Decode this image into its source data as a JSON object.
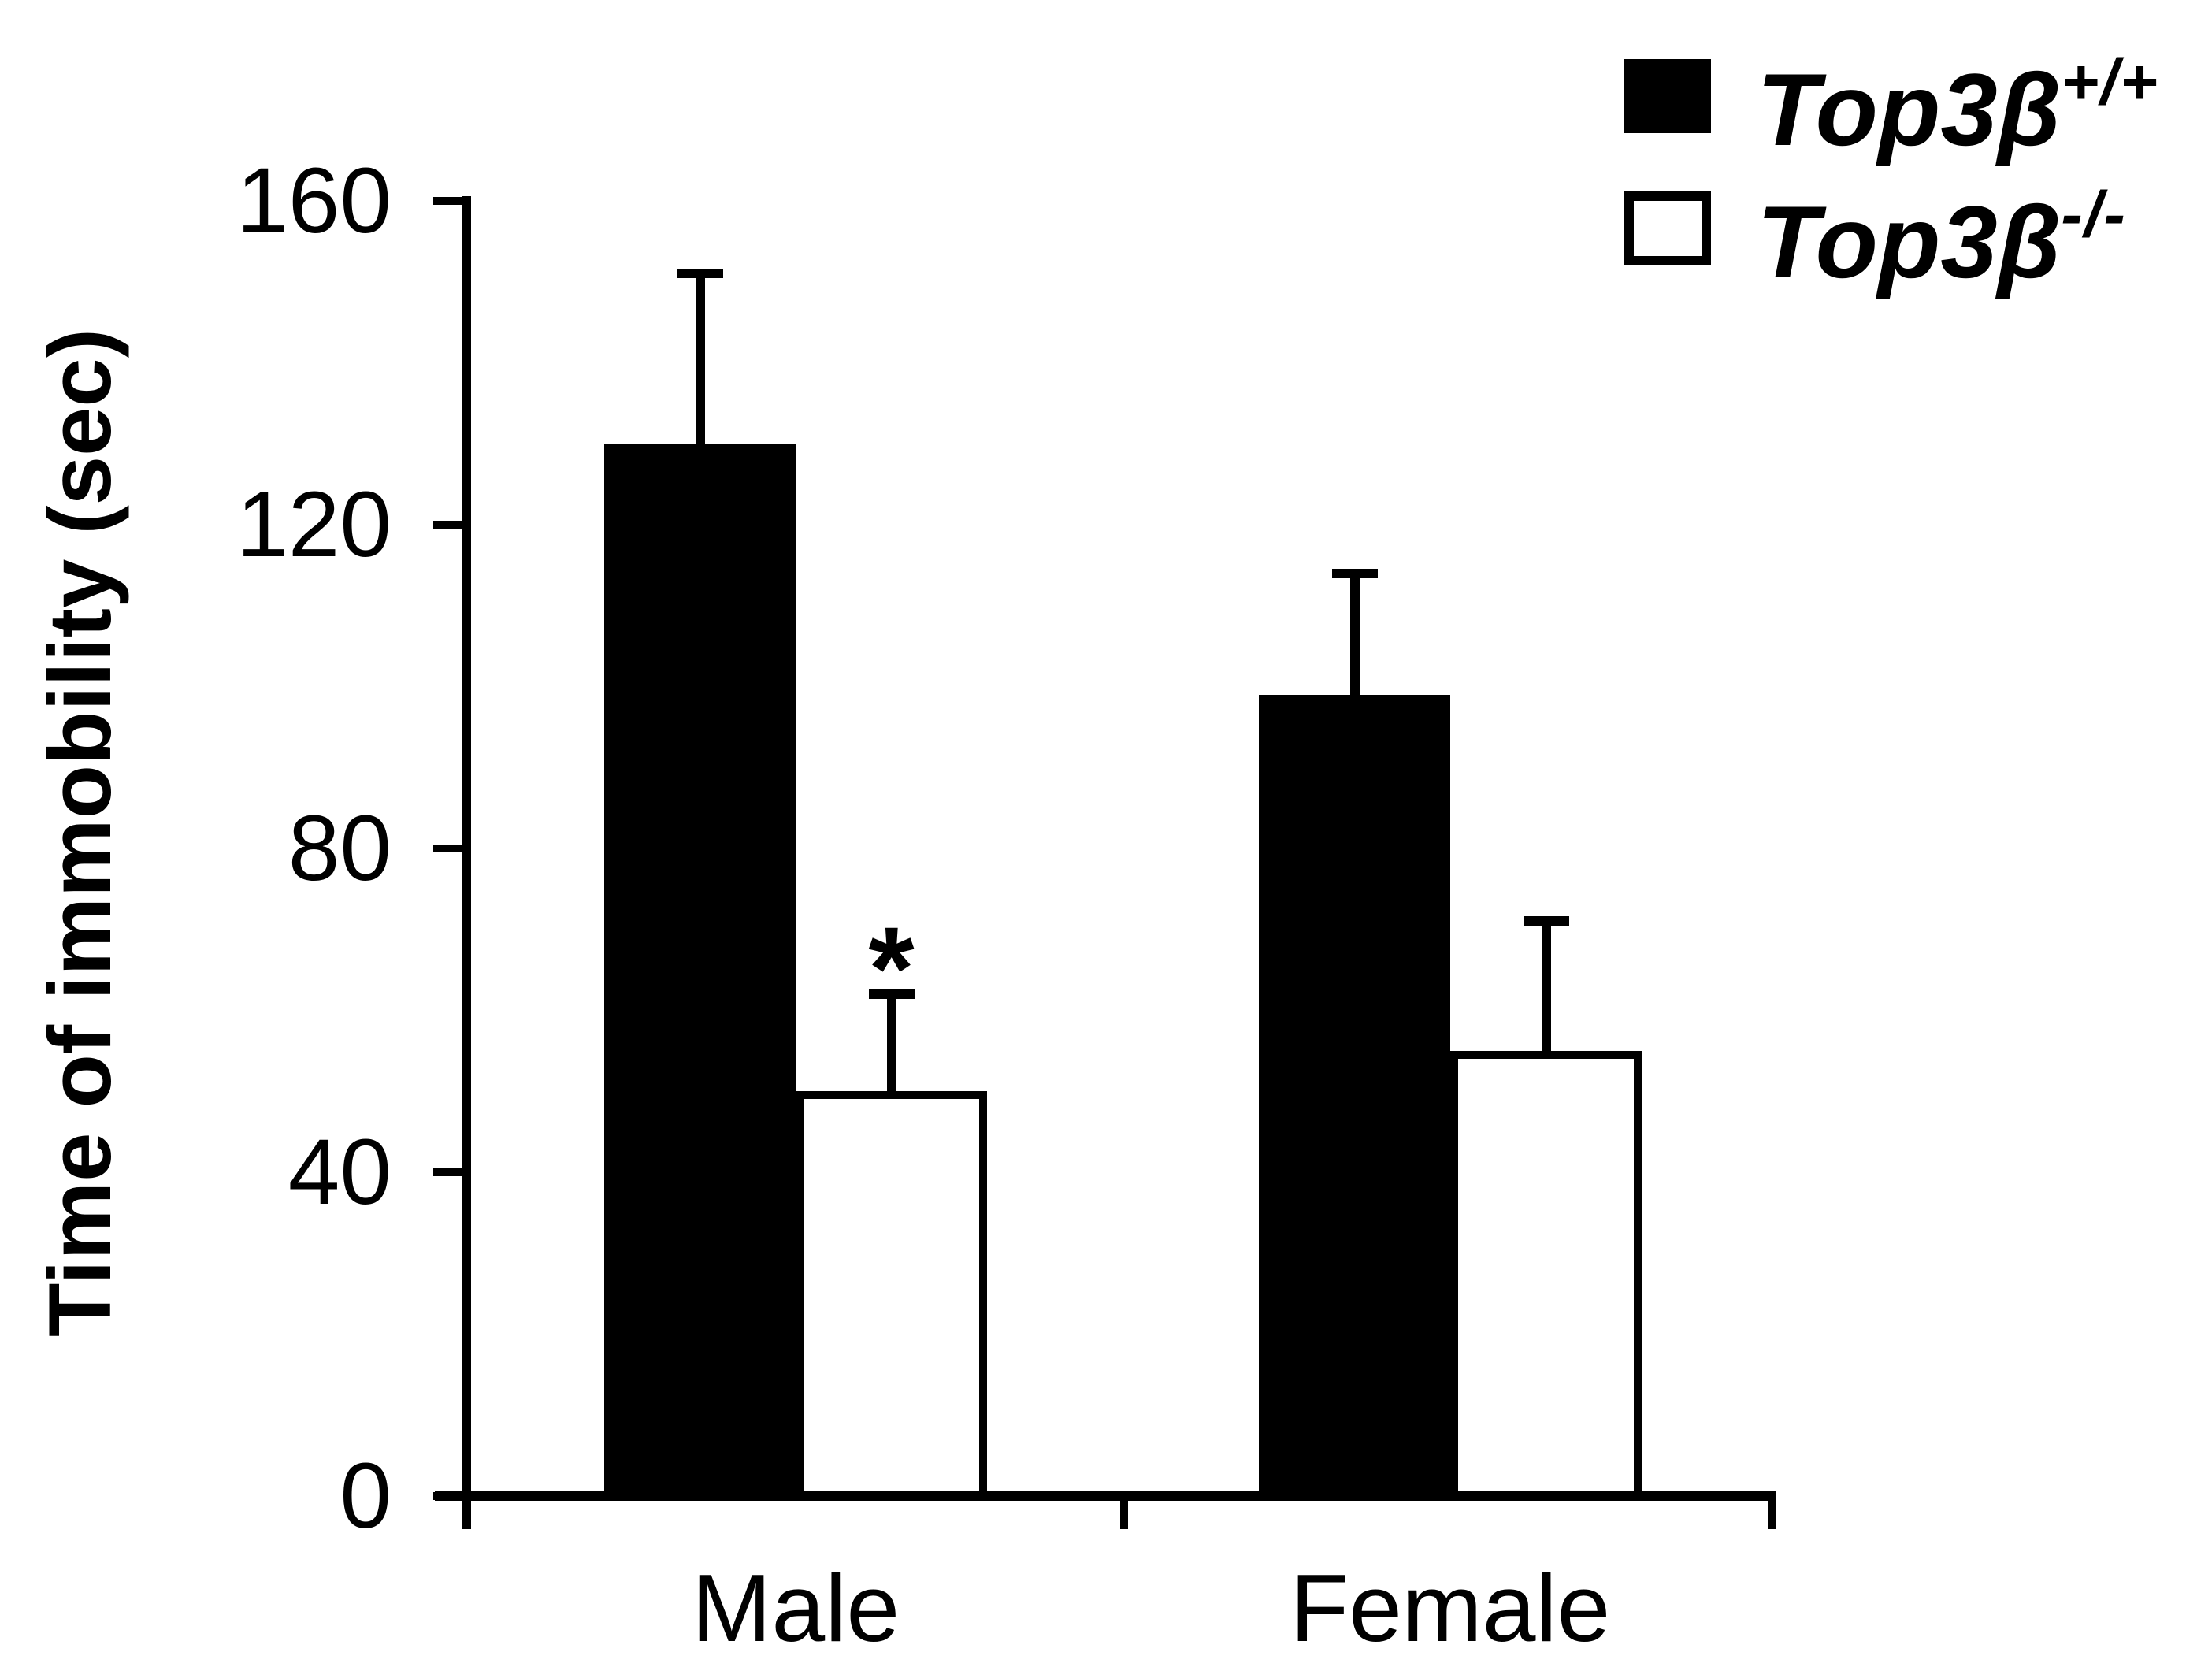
{
  "figure": {
    "background": "#ffffff",
    "foreground": "#000000"
  },
  "chart_data": {
    "type": "bar",
    "title": "",
    "xlabel": "",
    "ylabel": "Time of immobility (sec)",
    "ylim": [
      0,
      160
    ],
    "yticks": [
      0,
      40,
      80,
      120,
      160
    ],
    "grid": false,
    "legend_position": "top-right",
    "categories": [
      "Male",
      "Female"
    ],
    "series": [
      {
        "name": "Top3β+/+",
        "fill": "#000000",
        "stroke": "#000000",
        "values": [
          130,
          99
        ],
        "errors_plus": [
          21,
          15
        ]
      },
      {
        "name": "Top3β-/-",
        "fill": "#ffffff",
        "stroke": "#000000",
        "values": [
          50,
          55
        ],
        "errors_plus": [
          12,
          16
        ]
      }
    ],
    "annotations": [
      {
        "text": "*",
        "category_index": 0,
        "series_index": 1,
        "meaning": "significant difference"
      }
    ]
  },
  "legend": {
    "items": [
      {
        "swatch": "filled-black-square",
        "base": "Top3β",
        "sup": "+/+"
      },
      {
        "swatch": "open-white-square",
        "base": "Top3β",
        "sup": "-/-"
      }
    ]
  }
}
